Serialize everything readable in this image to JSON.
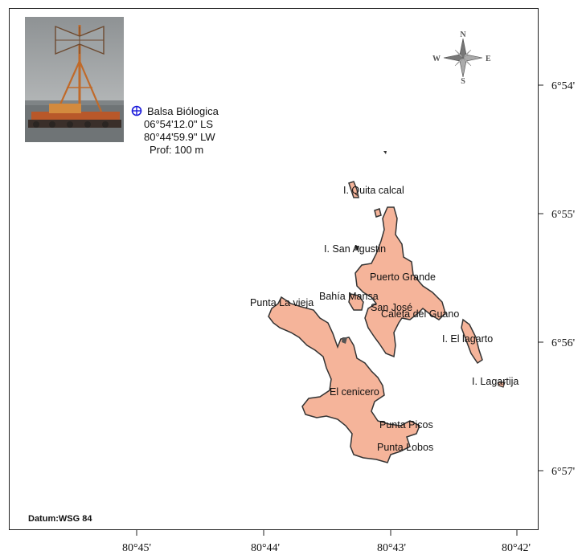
{
  "station": {
    "name": "Balsa Biólogica",
    "lat": "06°54'12.0\" LS",
    "lon": "80°44'59.9\" LW",
    "depth": "Prof: 100 m"
  },
  "datum": "Datum:WSG 84",
  "compass": {
    "n": "N",
    "s": "S",
    "e": "E",
    "w": "W"
  },
  "lon_ticks": [
    "80°45'",
    "80°44'",
    "80°43'",
    "80°42'"
  ],
  "lat_ticks": [
    "6°54'",
    "6°55'",
    "6°56'",
    "6°57'"
  ],
  "places": [
    "I. Quita calcal",
    "I. San Agustin",
    "Puerto Grande",
    "Bahía Mansa",
    "Punta La vieja",
    "San José",
    "Caleta del Guano",
    "I. El lagarto",
    "I. Lagartija",
    "El cenicero",
    "Punta Picos",
    "Punta Lobos"
  ],
  "colors": {
    "land": "#f5b49a",
    "coast": "#333333",
    "marker": "#1a1adb"
  }
}
